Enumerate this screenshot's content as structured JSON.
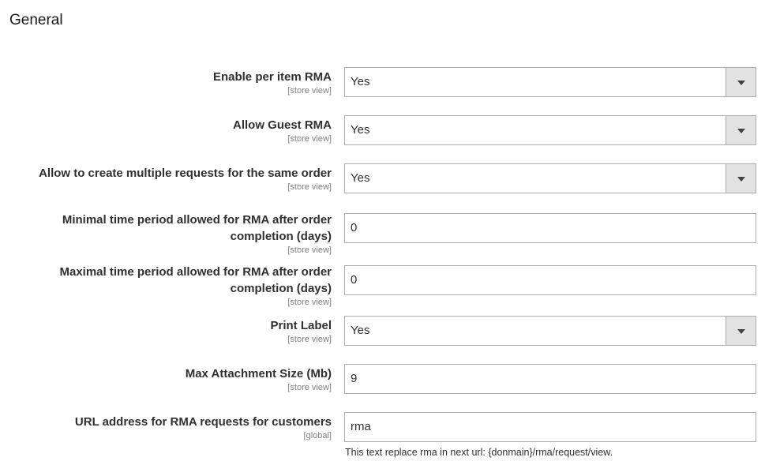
{
  "section_title": "General",
  "fields": [
    {
      "label": "Enable per item RMA",
      "scope": "[store view]",
      "type": "select",
      "value": "Yes"
    },
    {
      "label": "Allow Guest RMA",
      "scope": "[store view]",
      "type": "select",
      "value": "Yes"
    },
    {
      "label": "Allow to create multiple requests for the same order",
      "scope": "[store view]",
      "type": "select",
      "value": "Yes"
    },
    {
      "label": "Minimal time period allowed for RMA after order completion (days)",
      "scope": "[store view]",
      "type": "text",
      "value": "0"
    },
    {
      "label": "Maximal time period allowed for RMA after order completion (days)",
      "scope": "[store view]",
      "type": "text",
      "value": "0"
    },
    {
      "label": "Print Label",
      "scope": "[store view]",
      "type": "select",
      "value": "Yes"
    },
    {
      "label": "Max Attachment Size (Mb)",
      "scope": "[store view]",
      "type": "text",
      "value": "9"
    },
    {
      "label": "URL address for RMA requests for customers",
      "scope": "[global]",
      "type": "text",
      "value": "rma",
      "note": "This text replace rma in next url: {donmain}/rma/request/view."
    }
  ]
}
